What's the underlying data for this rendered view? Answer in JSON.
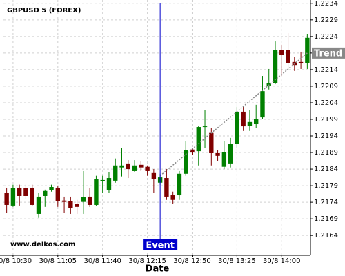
{
  "chart_data": {
    "type": "candlestick",
    "title": "GBPUSD 5 (FOREX)",
    "watermark": "www.delkos.com",
    "x_label": "Date",
    "categories": [
      null,
      "30/8 10:30",
      null,
      null,
      null,
      null,
      null,
      null,
      "30/8 11:05",
      null,
      null,
      null,
      null,
      null,
      null,
      "30/8 11:40",
      null,
      null,
      null,
      null,
      null,
      null,
      "30/8 12:15",
      null,
      null,
      null,
      null,
      null,
      null,
      "30/8 12:50",
      null,
      null,
      null,
      null,
      null,
      null,
      "30/8 13:25",
      null,
      null,
      null,
      null,
      null,
      null,
      "30/8 14:00",
      null,
      null,
      null,
      null
    ],
    "open": [
      1.21768,
      1.2173,
      1.21784,
      1.21782,
      1.21784,
      1.21705,
      1.21759,
      1.21776,
      1.21782,
      1.21745,
      1.21743,
      1.21736,
      1.21741,
      1.21757,
      1.21732,
      1.21803,
      1.21776,
      1.21805,
      1.21845,
      1.21857,
      1.21834,
      1.21853,
      1.21847,
      1.21828,
      1.21799,
      1.21813,
      1.21761,
      1.21761,
      1.21826,
      1.21899,
      1.21894,
      1.21967,
      1.21949,
      1.21888,
      1.21847,
      1.21857,
      1.21917,
      1.22013,
      1.21971,
      1.21976,
      1.21996,
      1.2209,
      1.221,
      1.222,
      1.222,
      1.22163,
      1.22163,
      1.22159
    ],
    "high": [
      1.21784,
      1.21793,
      1.21793,
      1.21793,
      1.21793,
      1.21768,
      1.21778,
      1.21793,
      1.21788,
      1.21757,
      1.21757,
      1.21747,
      1.21834,
      1.21784,
      1.2182,
      1.2182,
      1.2183,
      1.21872,
      1.21903,
      1.21867,
      1.21867,
      1.21865,
      1.21851,
      1.2184,
      1.21826,
      1.2184,
      1.21772,
      1.21834,
      1.21924,
      1.21903,
      1.21971,
      1.22017,
      1.21965,
      1.21897,
      1.21924,
      1.21934,
      1.22028,
      1.22028,
      1.22017,
      1.22034,
      1.22121,
      1.22142,
      1.22225,
      1.22215,
      1.2225,
      1.22179,
      1.22194,
      1.22246
    ],
    "low": [
      1.21709,
      1.21726,
      1.2173,
      1.21749,
      1.2173,
      1.21693,
      1.21726,
      1.21772,
      1.21726,
      1.21709,
      1.21705,
      1.21705,
      1.21705,
      1.21726,
      1.2173,
      1.21768,
      1.21768,
      1.21799,
      1.21818,
      1.21813,
      1.2183,
      1.21834,
      1.2182,
      1.21768,
      1.21793,
      1.21747,
      1.21736,
      1.21747,
      1.2182,
      1.21882,
      1.21851,
      1.21903,
      1.21851,
      1.21865,
      1.2184,
      1.21845,
      1.21903,
      1.21955,
      1.21955,
      1.21965,
      1.21992,
      1.2208,
      1.22096,
      1.22121,
      1.22138,
      1.22136,
      1.22142,
      1.22142
    ],
    "close": [
      1.21732,
      1.21782,
      1.21759,
      1.21759,
      1.21732,
      1.21757,
      1.21774,
      1.21786,
      1.21743,
      1.21741,
      1.21722,
      1.21726,
      1.21755,
      1.21732,
      1.21809,
      1.21807,
      1.21813,
      1.21851,
      1.21851,
      1.2184,
      1.21851,
      1.21845,
      1.21834,
      1.21811,
      1.21815,
      1.21757,
      1.21747,
      1.21826,
      1.21897,
      1.2189,
      1.21967,
      1.21969,
      1.21888,
      1.2188,
      1.21892,
      1.21917,
      1.22013,
      1.21969,
      1.21982,
      1.2199,
      1.22075,
      1.221,
      1.222,
      1.22184,
      1.22159,
      1.22154,
      1.22159,
      1.22236
    ],
    "up_color": "#008000",
    "down_color": "#800000",
    "ylim": [
      1.2158,
      1.2235
    ],
    "yticks": [
      1.2164,
      1.2169,
      1.2174,
      1.2179,
      1.2184,
      1.2189,
      1.2194,
      1.2199,
      1.2204,
      1.2209,
      1.2214,
      1.2219,
      1.2224,
      1.2229,
      1.2234
    ],
    "grid": true,
    "event": {
      "label": "Event",
      "position": 24,
      "color": "#0000cc"
    },
    "trend": {
      "label": "Trend",
      "start": [
        24,
        1.2182
      ],
      "end": [
        47,
        1.2219
      ],
      "color": "#888888"
    }
  }
}
